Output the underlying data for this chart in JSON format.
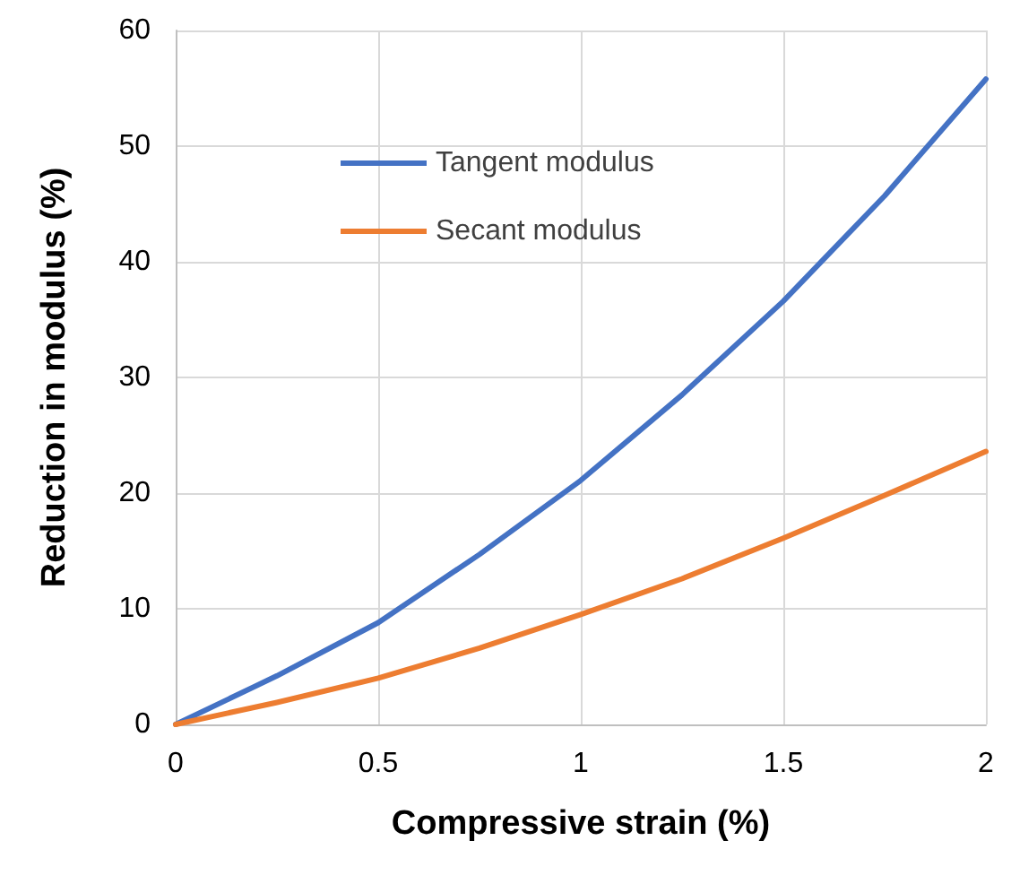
{
  "chart_data": {
    "type": "line",
    "xlabel": "Compressive strain (%)",
    "ylabel": "Reduction in modulus (%)",
    "x": [
      0,
      0.25,
      0.5,
      0.75,
      1,
      1.25,
      1.5,
      1.75,
      2
    ],
    "series": [
      {
        "name": "Tangent modulus",
        "color": "#4472c4",
        "values": [
          0,
          4.2,
          8.8,
          14.7,
          21.1,
          28.5,
          36.6,
          45.7,
          55.8
        ]
      },
      {
        "name": "Secant modulus",
        "color": "#ed7d31",
        "values": [
          0,
          1.9,
          4.0,
          6.6,
          9.5,
          12.6,
          16.1,
          19.8,
          23.6
        ]
      }
    ],
    "xlim": [
      0,
      2
    ],
    "xticks": [
      0,
      0.5,
      1,
      1.5,
      2
    ],
    "ylim": [
      0,
      60
    ],
    "yticks": [
      0,
      10,
      20,
      30,
      40,
      50,
      60
    ],
    "grid": true,
    "legend": "top left",
    "marker": "none",
    "line_style": "solid"
  }
}
